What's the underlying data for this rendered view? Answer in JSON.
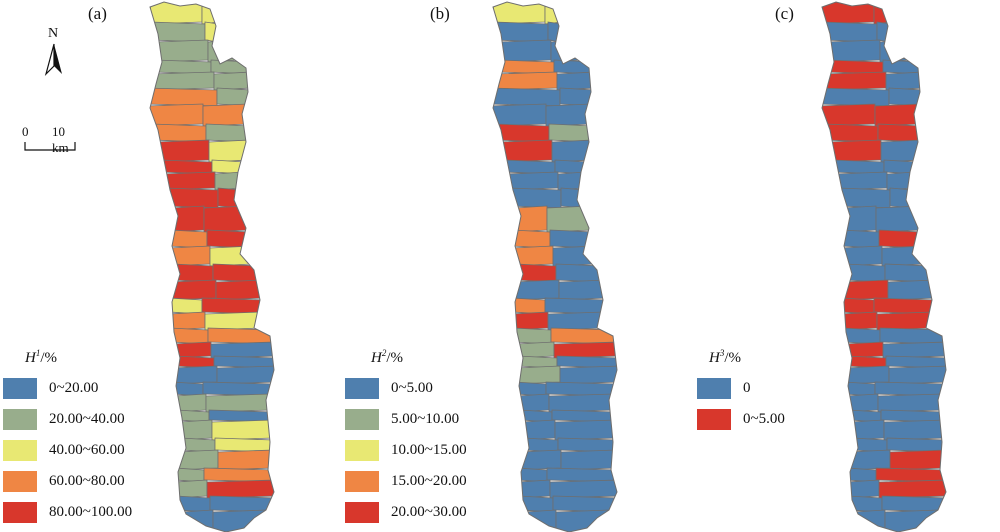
{
  "panels": [
    {
      "label": "(a)",
      "legend": {
        "symbol": "H",
        "sup": "1",
        "unit": "/%",
        "items": [
          {
            "label": "0~20.00",
            "color": "#4f7fae"
          },
          {
            "label": "20.00~40.00",
            "color": "#98ad8c"
          },
          {
            "label": "40.00~60.00",
            "color": "#e8e873"
          },
          {
            "label": "60.00~80.00",
            "color": "#ef8644"
          },
          {
            "label": "80.00~100.00",
            "color": "#d8372c"
          }
        ]
      }
    },
    {
      "label": "(b)",
      "legend": {
        "symbol": "H",
        "sup": "2",
        "unit": "/%",
        "items": [
          {
            "label": "0~5.00",
            "color": "#4f7fae"
          },
          {
            "label": "5.00~10.00",
            "color": "#98ad8c"
          },
          {
            "label": "10.00~15.00",
            "color": "#e8e873"
          },
          {
            "label": "15.00~20.00",
            "color": "#ef8644"
          },
          {
            "label": "20.00~30.00",
            "color": "#d8372c"
          }
        ]
      }
    },
    {
      "label": "(c)",
      "legend": {
        "symbol": "H",
        "sup": "3",
        "unit": "/%",
        "items": [
          {
            "label": "0",
            "color": "#4f7fae"
          },
          {
            "label": "0~5.00",
            "color": "#d8372c"
          }
        ]
      }
    }
  ],
  "north_arrow": {
    "letter": "N"
  },
  "scale_bar": {
    "start": "0",
    "end": "10 km"
  },
  "boundary_color": "#6e6e6e"
}
